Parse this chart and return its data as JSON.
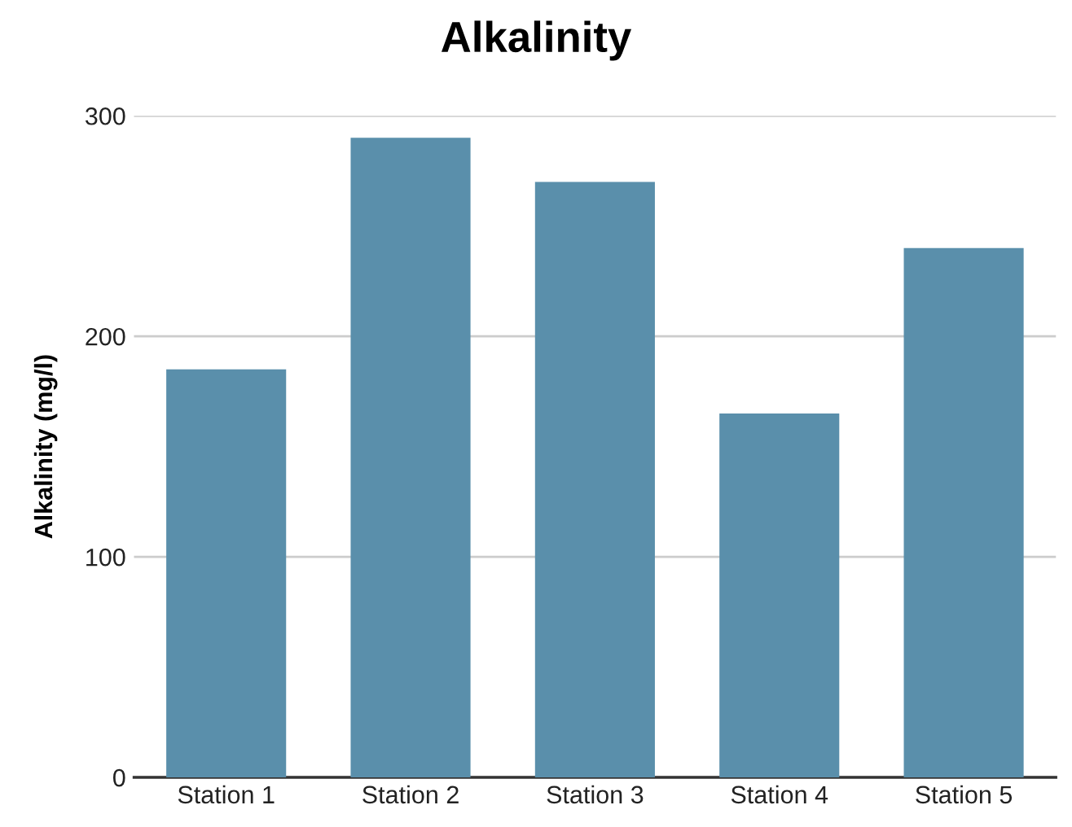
{
  "chart_data": {
    "type": "bar",
    "title": "Alkalinity",
    "ylabel": "Alkalinity (mg/l)",
    "categories": [
      "Station 1",
      "Station 2",
      "Station 3",
      "Station 4",
      "Station 5"
    ],
    "values": [
      185,
      290,
      270,
      165,
      240
    ],
    "color": "#5a8fab",
    "ylim": [
      0,
      300
    ],
    "yticks": [
      0,
      100,
      200,
      300
    ],
    "grid": "y",
    "legend": false
  }
}
